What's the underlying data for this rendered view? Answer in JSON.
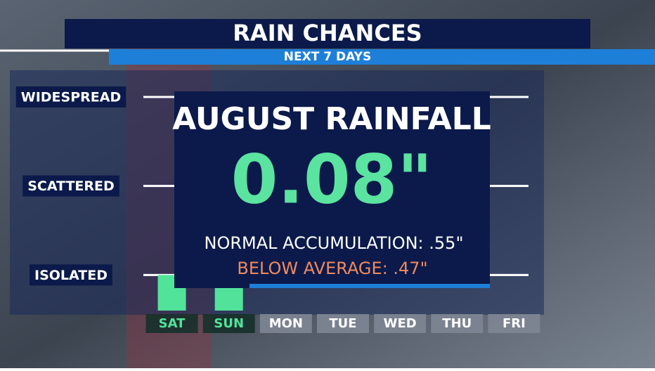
{
  "header": {
    "title": "RAIN CHANCES",
    "subtitle": "NEXT 7 DAYS"
  },
  "chart_data": {
    "type": "bar",
    "categories": [
      "SAT",
      "SUN",
      "MON",
      "TUE",
      "WED",
      "THU",
      "FRI"
    ],
    "values": [
      1,
      1,
      null,
      null,
      null,
      null,
      null
    ],
    "color": "#52e39b",
    "ylim": [
      0.6,
      3.3
    ],
    "yticks": [
      {
        "value": 1,
        "label": "ISOLATED"
      },
      {
        "value": 2,
        "label": "SCATTERED"
      },
      {
        "value": 3,
        "label": "WIDESPREAD"
      }
    ],
    "grid": true
  },
  "overlay": {
    "title": "AUGUST RAINFALL",
    "amount": "0.08\"",
    "normal": "NORMAL ACCUMULATION: .55\"",
    "departure": "BELOW AVERAGE: .47\""
  }
}
